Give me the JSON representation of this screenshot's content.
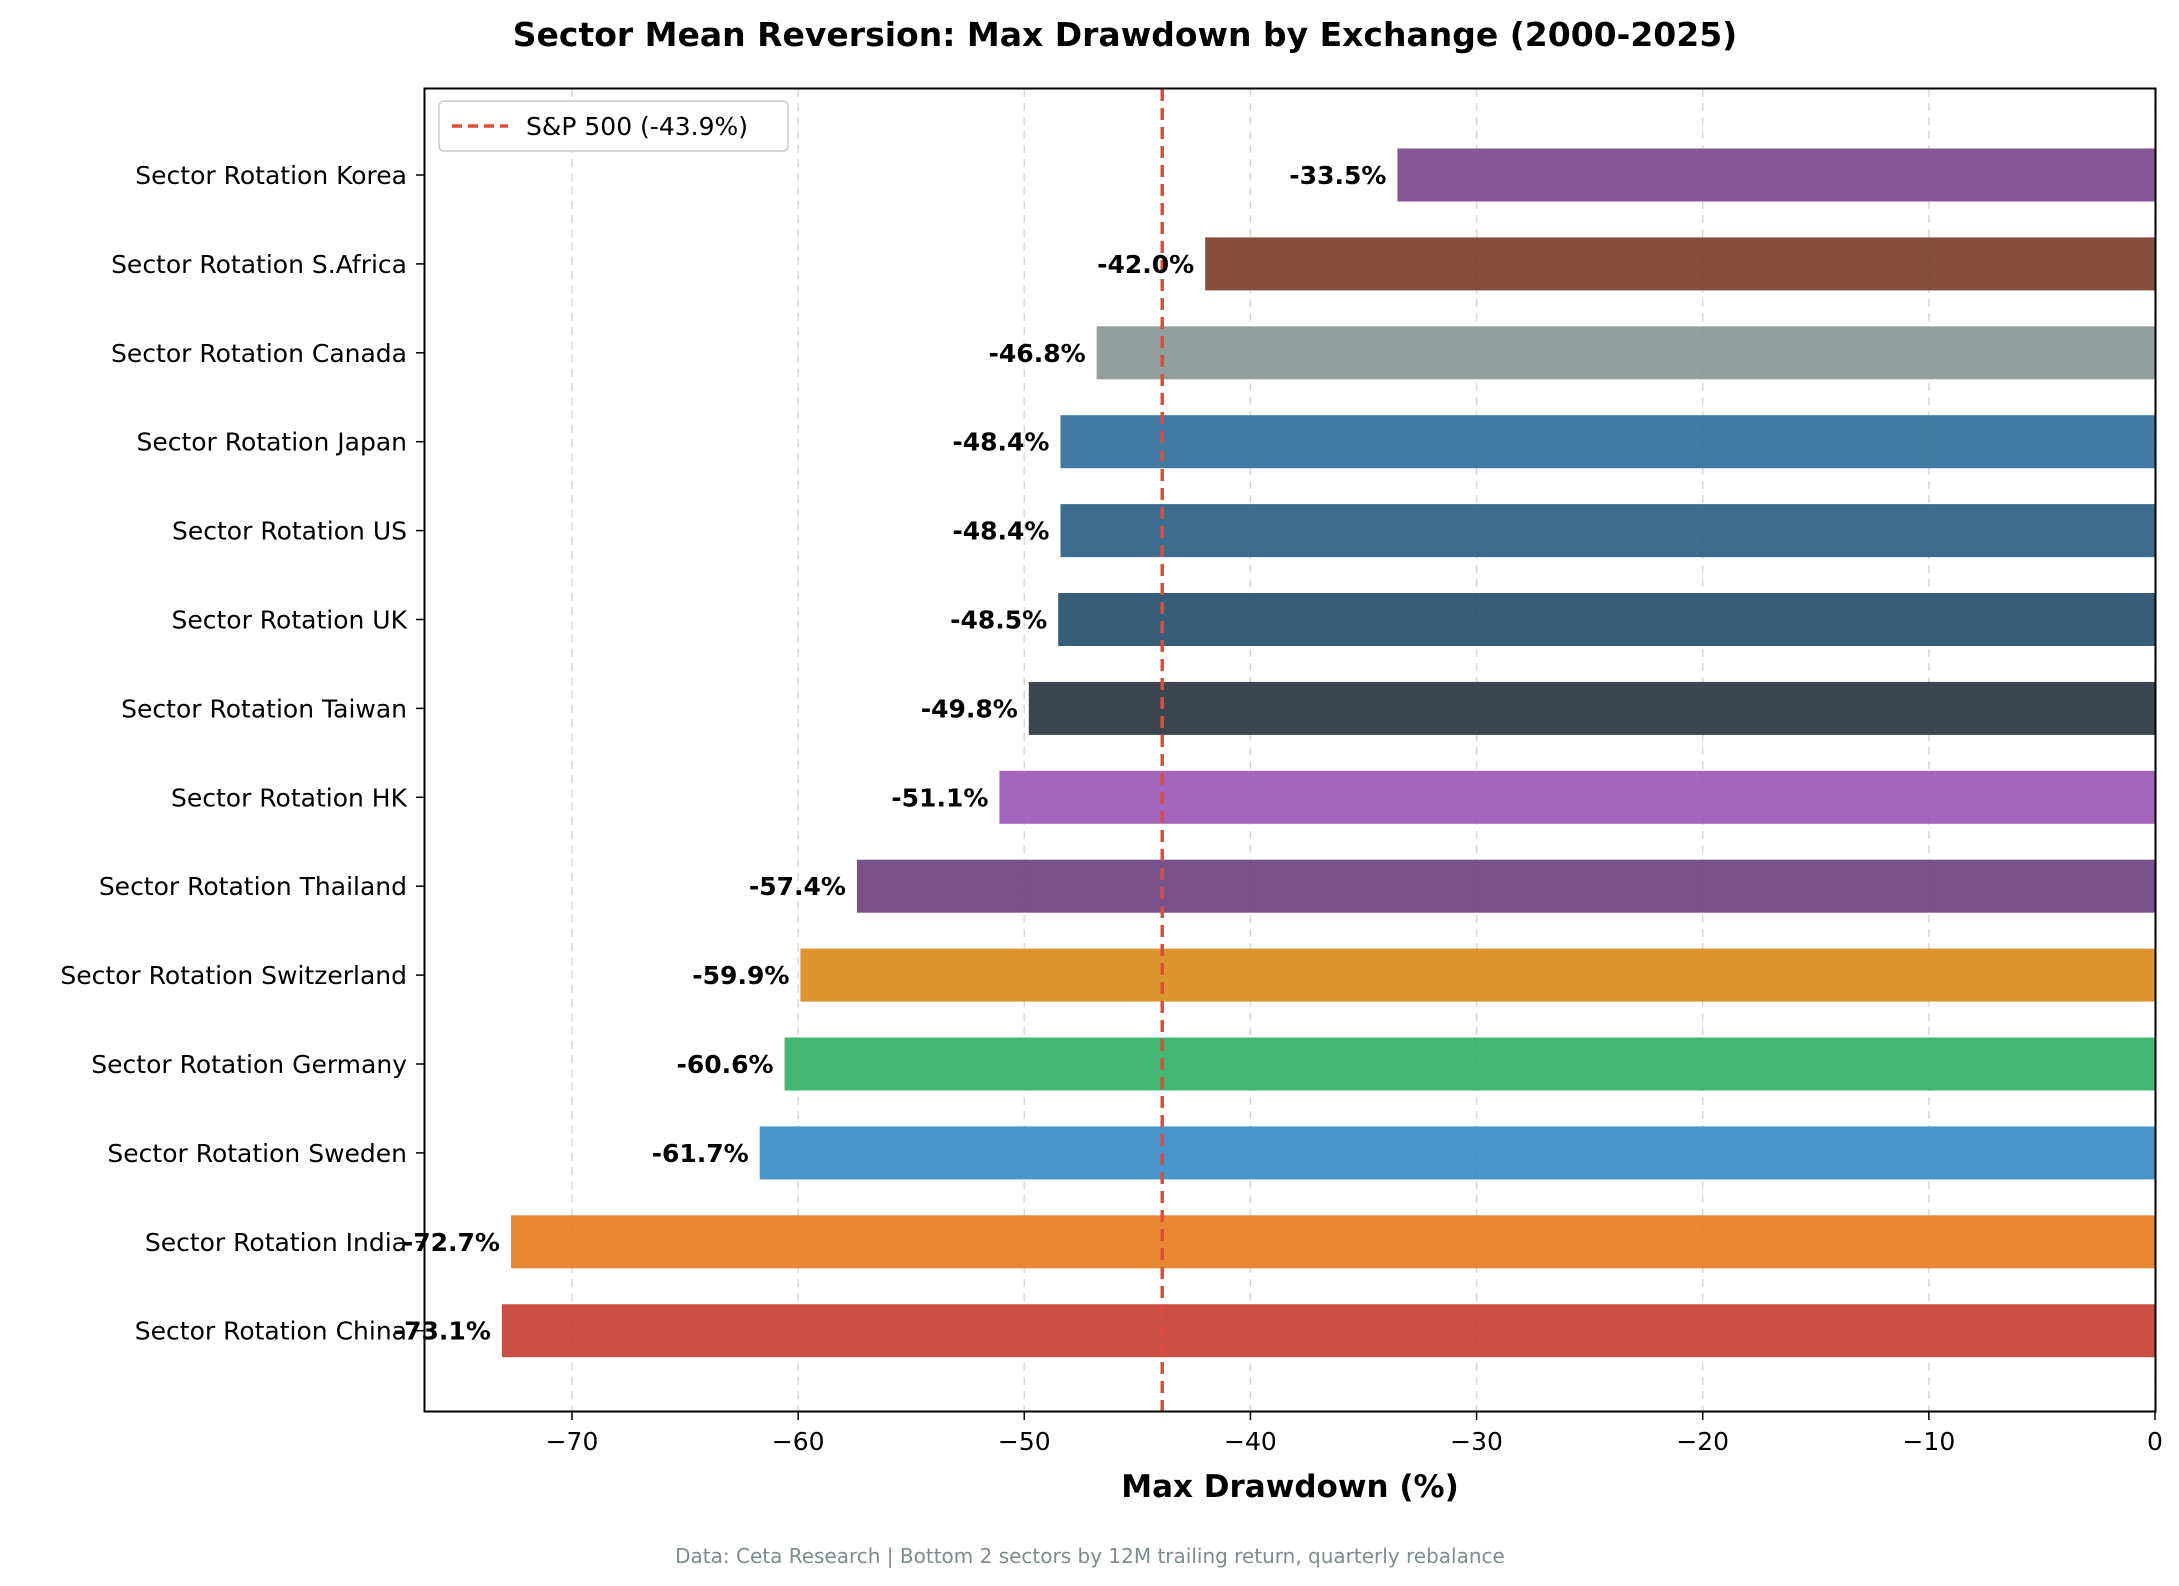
{
  "chart_data": {
    "type": "bar",
    "orientation": "horizontal",
    "title": "Sector Mean Reversion: Max Drawdown by Exchange (2000-2025)",
    "xlabel": "Max Drawdown (%)",
    "ylabel": "",
    "xlim": [
      -76.5,
      0
    ],
    "xticks": [
      -70,
      -60,
      -50,
      -40,
      -30,
      -20,
      -10,
      0
    ],
    "xtick_labels": [
      "−70",
      "−60",
      "−50",
      "−40",
      "−30",
      "−20",
      "−10",
      "0"
    ],
    "grid": "x-axis, dashed",
    "categories": [
      "Sector Rotation Korea",
      "Sector Rotation S.Africa",
      "Sector Rotation Canada",
      "Sector Rotation Japan",
      "Sector Rotation US",
      "Sector Rotation UK",
      "Sector Rotation Taiwan",
      "Sector Rotation HK",
      "Sector Rotation Thailand",
      "Sector Rotation Switzerland",
      "Sector Rotation Germany",
      "Sector Rotation Sweden",
      "Sector Rotation India",
      "Sector Rotation China"
    ],
    "values": [
      -33.5,
      -42.0,
      -46.8,
      -48.4,
      -48.4,
      -48.5,
      -49.8,
      -51.1,
      -57.4,
      -59.9,
      -60.6,
      -61.7,
      -72.7,
      -73.1
    ],
    "value_labels": [
      "-33.5%",
      "-42.0%",
      "-46.8%",
      "-48.4%",
      "-48.4%",
      "-48.5%",
      "-49.8%",
      "-51.1%",
      "-57.4%",
      "-59.9%",
      "-60.6%",
      "-61.7%",
      "-72.7%",
      "-73.1%"
    ],
    "colors": [
      "#7b4a8c",
      "#7b3f2d",
      "#8b9696",
      "#336f99",
      "#2e5f82",
      "#264f6e",
      "#2c3640",
      "#9b59b6",
      "#6c4280",
      "#d98c1c",
      "#33b167",
      "#3a8cc5",
      "#e67e22",
      "#c74035"
    ],
    "reference_line": {
      "value": -43.9,
      "label": "S&P 500 (-43.9%)",
      "color": "#e04b3c",
      "style": "dashed"
    },
    "legend": {
      "position": "top-left",
      "entries": [
        "S&P 500 (-43.9%)"
      ]
    }
  },
  "footnote": "Data: Ceta Research | Bottom 2 sectors by 12M trailing return, quarterly rebalance"
}
